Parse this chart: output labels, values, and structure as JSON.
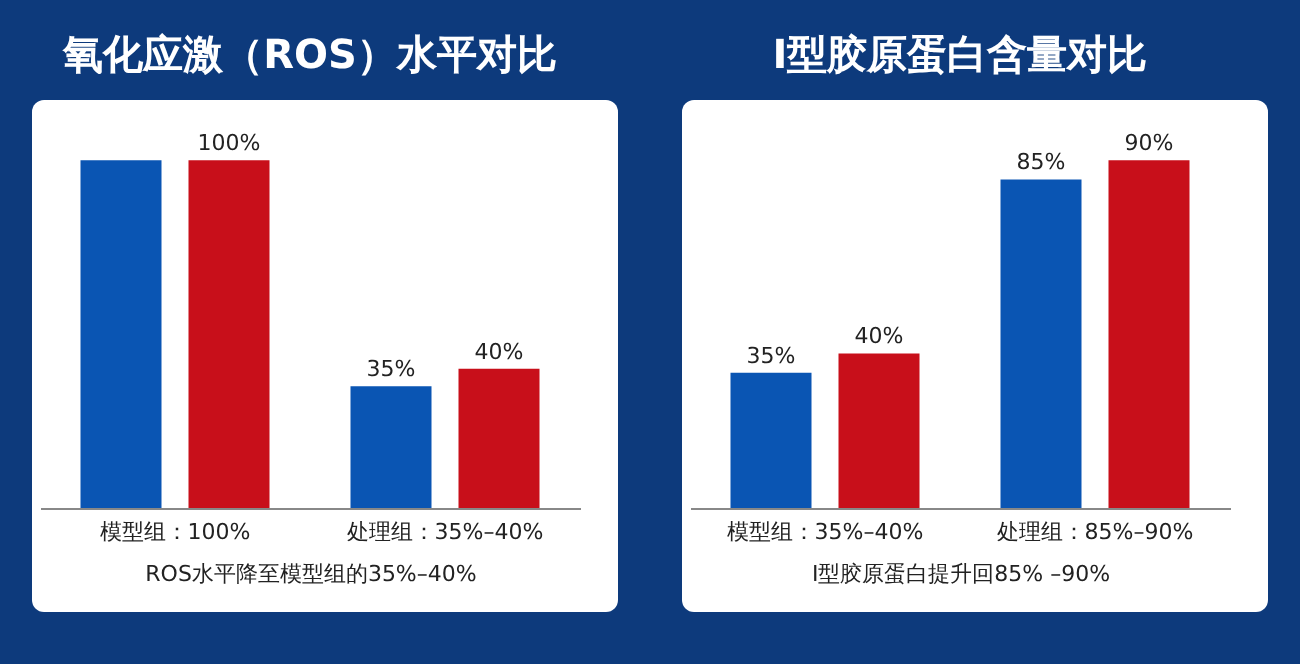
{
  "chart_data": [
    {
      "type": "bar",
      "title": "氧化应激（ROS）水平对比",
      "categories": [
        "模型组：100%",
        "处理组：35%–40%"
      ],
      "series": [
        {
          "color": "#0a55b3",
          "values": [
            100,
            35
          ],
          "value_labels": [
            null,
            "35%"
          ]
        },
        {
          "color": "#c80f1a",
          "values": [
            100,
            40
          ],
          "value_labels": [
            "100%",
            "40%"
          ]
        }
      ],
      "annotations": [
        "ROS水平降至模型组的35%–40%"
      ]
    },
    {
      "type": "bar",
      "title": "I型胶原蛋白含量对比",
      "categories": [
        "模型组：35%–40%",
        "处理组：85%–90%"
      ],
      "series": [
        {
          "color": "#0a55b3",
          "values": [
            35,
            85
          ],
          "value_labels": [
            "35%",
            "85%"
          ]
        },
        {
          "color": "#c80f1a",
          "values": [
            40,
            90
          ],
          "value_labels": [
            "40%",
            "90%"
          ]
        }
      ],
      "annotations": [
        "I型胶原蛋白提升回85% –90%"
      ]
    }
  ]
}
